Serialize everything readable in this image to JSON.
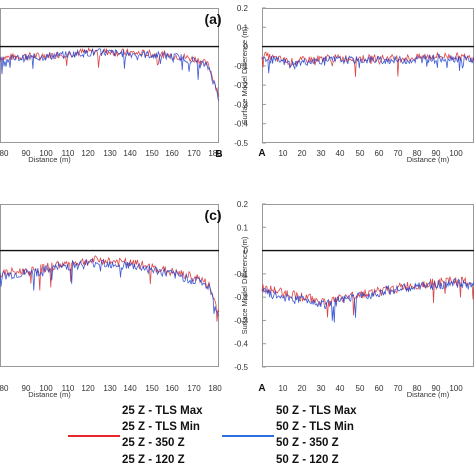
{
  "chart_data": [
    {
      "type": "line",
      "panel_label": "(a)",
      "xlabel": "Distance (m)",
      "ylabel": "",
      "x_tick_labels": [
        "80",
        "90",
        "100",
        "110",
        "120",
        "130",
        "140",
        "150",
        "160",
        "170",
        "180",
        "190"
      ],
      "end_label": "B",
      "ylim": [
        -0.5,
        0.2
      ],
      "reference_line": 0,
      "series": [
        {
          "color": "#d62728",
          "x": [
            80,
            90,
            100,
            110,
            120,
            130,
            140,
            150,
            160,
            170,
            180,
            185,
            190
          ],
          "y": [
            -0.06,
            -0.05,
            -0.05,
            -0.04,
            -0.03,
            -0.025,
            -0.03,
            -0.035,
            -0.04,
            -0.05,
            -0.07,
            -0.1,
            -0.25
          ]
        },
        {
          "color": "#1f3fcf",
          "x": [
            80,
            90,
            100,
            110,
            120,
            130,
            140,
            150,
            160,
            170,
            180,
            185,
            190
          ],
          "y": [
            -0.07,
            -0.06,
            -0.055,
            -0.045,
            -0.035,
            -0.03,
            -0.035,
            -0.04,
            -0.045,
            -0.055,
            -0.08,
            -0.11,
            -0.27
          ]
        }
      ]
    },
    {
      "type": "line",
      "panel_label": "",
      "xlabel": "Distance (m)",
      "ylabel": "Surface Model Difference (m)",
      "yticks": [
        "0.2",
        "0.1",
        "0",
        "-0.1",
        "-0.2",
        "-0.3",
        "-0.4",
        "-0.5"
      ],
      "x_tick_labels": [
        "A",
        "10",
        "20",
        "30",
        "40",
        "50",
        "60",
        "70",
        "80",
        "90",
        "100"
      ],
      "start_label": "A",
      "ylim": [
        -0.5,
        0.2
      ],
      "reference_line": 0,
      "series": [
        {
          "color": "#d62728",
          "x": [
            0,
            5,
            10,
            15,
            20,
            30,
            40,
            50,
            60,
            70,
            80,
            90,
            100
          ],
          "y": [
            -0.04,
            -0.06,
            -0.07,
            -0.08,
            -0.07,
            -0.06,
            -0.06,
            -0.06,
            -0.06,
            -0.06,
            -0.05,
            -0.05,
            -0.06
          ]
        },
        {
          "color": "#1f3fcf",
          "x": [
            0,
            5,
            10,
            15,
            20,
            30,
            40,
            50,
            60,
            70,
            80,
            90,
            100
          ],
          "y": [
            -0.05,
            -0.07,
            -0.08,
            -0.09,
            -0.08,
            -0.07,
            -0.07,
            -0.07,
            -0.07,
            -0.07,
            -0.06,
            -0.06,
            -0.07
          ]
        }
      ]
    },
    {
      "type": "line",
      "panel_label": "(c)",
      "xlabel": "Distance (m)",
      "ylabel": "",
      "x_tick_labels": [
        "80",
        "90",
        "100",
        "110",
        "120",
        "130",
        "140",
        "150",
        "160",
        "170",
        "180",
        "190"
      ],
      "end_label": "",
      "ylim": [
        -0.5,
        0.2
      ],
      "reference_line": 0,
      "series": [
        {
          "color": "#d62728",
          "x": [
            80,
            90,
            100,
            110,
            120,
            130,
            140,
            150,
            160,
            170,
            180,
            185,
            190
          ],
          "y": [
            -0.1,
            -0.09,
            -0.08,
            -0.06,
            -0.05,
            -0.04,
            -0.05,
            -0.06,
            -0.08,
            -0.1,
            -0.12,
            -0.15,
            -0.27
          ]
        },
        {
          "color": "#1f3fcf",
          "x": [
            80,
            90,
            100,
            110,
            120,
            130,
            140,
            150,
            160,
            170,
            180,
            185,
            190
          ],
          "y": [
            -0.11,
            -0.1,
            -0.09,
            -0.07,
            -0.06,
            -0.05,
            -0.06,
            -0.07,
            -0.09,
            -0.11,
            -0.13,
            -0.16,
            -0.29
          ]
        }
      ]
    },
    {
      "type": "line",
      "panel_label": "",
      "xlabel": "Distance (m)",
      "ylabel": "Surface Model Difference (m)",
      "yticks": [
        "0.2",
        "0.1",
        "0",
        "-0.1",
        "-0.2",
        "-0.3",
        "-0.4",
        "-0.5"
      ],
      "x_tick_labels": [
        "A",
        "10",
        "20",
        "30",
        "40",
        "50",
        "60",
        "70",
        "80",
        "90",
        "100"
      ],
      "start_label": "A",
      "ylim": [
        -0.5,
        0.2
      ],
      "reference_line": 0,
      "series": [
        {
          "color": "#d62728",
          "x": [
            0,
            5,
            10,
            20,
            30,
            40,
            50,
            60,
            70,
            80,
            90,
            100
          ],
          "y": [
            -0.16,
            -0.17,
            -0.18,
            -0.2,
            -0.22,
            -0.2,
            -0.18,
            -0.17,
            -0.15,
            -0.14,
            -0.13,
            -0.14
          ]
        },
        {
          "color": "#1f3fcf",
          "x": [
            0,
            5,
            10,
            20,
            30,
            40,
            50,
            60,
            70,
            80,
            90,
            100
          ],
          "y": [
            -0.18,
            -0.19,
            -0.2,
            -0.21,
            -0.23,
            -0.21,
            -0.19,
            -0.17,
            -0.16,
            -0.15,
            -0.14,
            -0.15
          ]
        }
      ]
    }
  ],
  "legend": {
    "left": [
      {
        "label": "25 Z - TLS Max",
        "color": ""
      },
      {
        "label": "25 Z - TLS Min",
        "color": ""
      },
      {
        "label": "25 Z - 350 Z",
        "color": "#e8262b"
      },
      {
        "label": "25 Z - 120 Z",
        "color": ""
      }
    ],
    "right": [
      {
        "label": "50 Z - TLS Max",
        "color": ""
      },
      {
        "label": "50 Z - TLS Min",
        "color": ""
      },
      {
        "label": "50 Z - 350 Z",
        "color": "#2f6ee0"
      },
      {
        "label": "50 Z - 120 Z",
        "color": ""
      }
    ]
  }
}
